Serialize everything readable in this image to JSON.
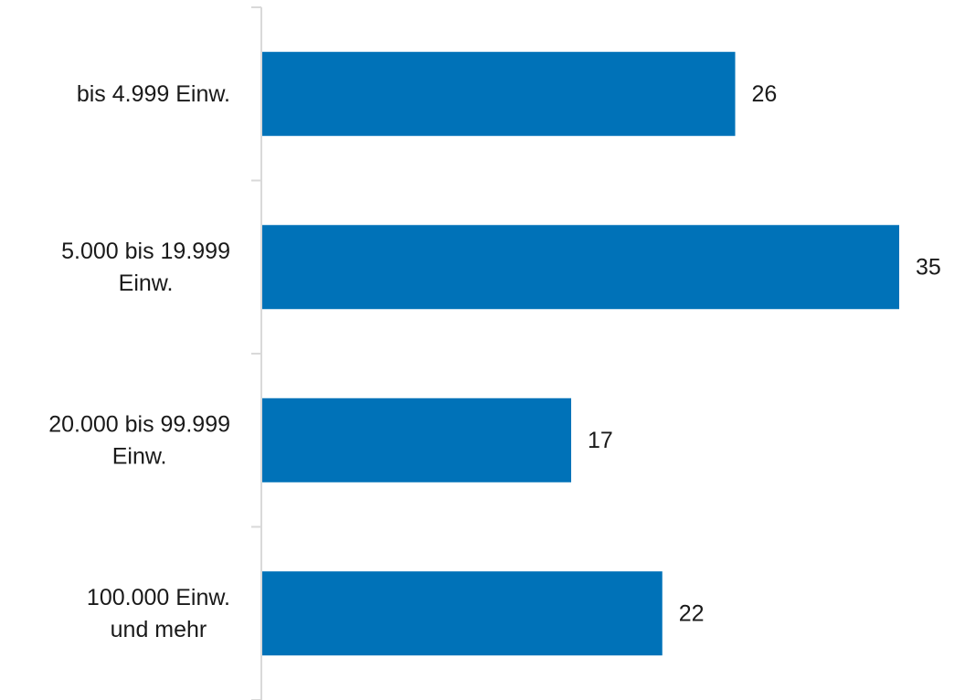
{
  "chart_data": {
    "type": "bar",
    "orientation": "horizontal",
    "categories": [
      [
        "bis 4.999 Einw."
      ],
      [
        "5.000 bis 19.999",
        "Einw."
      ],
      [
        "20.000 bis 99.999",
        "Einw."
      ],
      [
        "100.000 Einw.",
        "und mehr"
      ]
    ],
    "values": [
      26,
      35,
      17,
      22
    ],
    "xlim": [
      0,
      35
    ],
    "grid": false,
    "legend": "none",
    "bar_color": "#0072B8",
    "axis_color": "#D9D9D9"
  }
}
